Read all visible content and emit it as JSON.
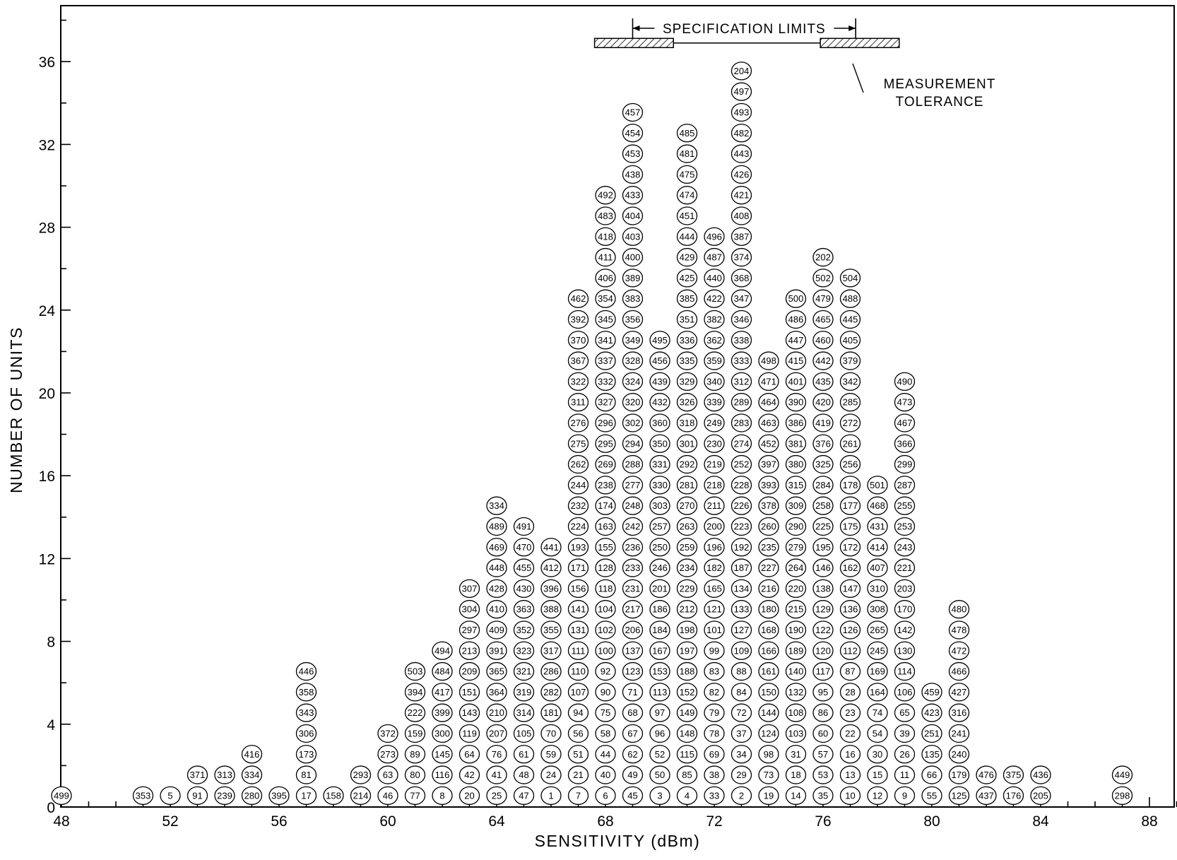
{
  "chart_data": {
    "type": "scatter",
    "xlabel": "SENSITIVITY (dBm)",
    "ylabel": "NUMBER OF UNITS",
    "xlim": [
      48,
      89
    ],
    "ylim": [
      0,
      38.5
    ],
    "x_ticks": [
      "48",
      "52",
      "56",
      "60",
      "64",
      "68",
      "72",
      "76",
      "80",
      "84",
      "88"
    ],
    "y_ticks": [
      "0",
      "4",
      "8",
      "12",
      "16",
      "20",
      "24",
      "28",
      "32",
      "36"
    ],
    "x_minor_step": 1,
    "y_minor_step": 2,
    "grid": false,
    "columns": [
      {
        "x": 48,
        "units": [
          "499"
        ]
      },
      {
        "x": 51,
        "units": [
          "353"
        ]
      },
      {
        "x": 52,
        "units": [
          "5"
        ]
      },
      {
        "x": 53,
        "units": [
          "91",
          "371"
        ]
      },
      {
        "x": 54,
        "units": [
          "239",
          "313"
        ]
      },
      {
        "x": 55,
        "units": [
          "280",
          "334",
          "416"
        ]
      },
      {
        "x": 56,
        "units": [
          "395"
        ]
      },
      {
        "x": 57,
        "units": [
          "17",
          "81",
          "173",
          "306",
          "343",
          "358",
          "446"
        ]
      },
      {
        "x": 58,
        "units": [
          "158"
        ]
      },
      {
        "x": 59,
        "units": [
          "214",
          "293"
        ]
      },
      {
        "x": 60,
        "units": [
          "46",
          "63",
          "273",
          "372"
        ]
      },
      {
        "x": 61,
        "units": [
          "77",
          "80",
          "89",
          "159",
          "222",
          "394",
          "503"
        ]
      },
      {
        "x": 62,
        "units": [
          "8",
          "116",
          "145",
          "300",
          "399",
          "417",
          "484",
          "494"
        ]
      },
      {
        "x": 63,
        "units": [
          "20",
          "42",
          "64",
          "119",
          "143",
          "151",
          "209",
          "213",
          "297",
          "304",
          "307"
        ]
      },
      {
        "x": 64,
        "units": [
          "25",
          "41",
          "76",
          "207",
          "210",
          "364",
          "365",
          "391",
          "409",
          "410",
          "428",
          "448",
          "469",
          "489",
          "334"
        ]
      },
      {
        "x": 65,
        "units": [
          "47",
          "48",
          "61",
          "105",
          "314",
          "319",
          "321",
          "323",
          "352",
          "363",
          "430",
          "455",
          "470",
          "491"
        ]
      },
      {
        "x": 66,
        "units": [
          "1",
          "24",
          "59",
          "70",
          "181",
          "282",
          "286",
          "317",
          "355",
          "388",
          "396",
          "412",
          "441"
        ]
      },
      {
        "x": 67,
        "units": [
          "7",
          "21",
          "51",
          "56",
          "94",
          "107",
          "110",
          "111",
          "131",
          "141",
          "156",
          "171",
          "193",
          "224",
          "232",
          "244",
          "262",
          "275",
          "276",
          "311",
          "322",
          "367",
          "370",
          "392",
          "462"
        ]
      },
      {
        "x": 68,
        "units": [
          "6",
          "40",
          "44",
          "58",
          "75",
          "90",
          "92",
          "100",
          "102",
          "104",
          "118",
          "128",
          "155",
          "163",
          "174",
          "238",
          "269",
          "295",
          "296",
          "327",
          "332",
          "337",
          "341",
          "345",
          "354",
          "406",
          "411",
          "418",
          "483",
          "492"
        ]
      },
      {
        "x": 69,
        "units": [
          "45",
          "49",
          "62",
          "67",
          "68",
          "71",
          "123",
          "137",
          "206",
          "217",
          "231",
          "233",
          "236",
          "242",
          "248",
          "277",
          "288",
          "294",
          "302",
          "320",
          "324",
          "328",
          "349",
          "356",
          "383",
          "389",
          "400",
          "403",
          "404",
          "433",
          "438",
          "453",
          "454",
          "457"
        ]
      },
      {
        "x": 70,
        "units": [
          "3",
          "50",
          "52",
          "96",
          "97",
          "113",
          "153",
          "167",
          "184",
          "186",
          "201",
          "246",
          "250",
          "257",
          "303",
          "330",
          "331",
          "350",
          "360",
          "432",
          "439",
          "456",
          "495"
        ]
      },
      {
        "x": 71,
        "units": [
          "4",
          "85",
          "115",
          "148",
          "149",
          "152",
          "188",
          "197",
          "198",
          "212",
          "229",
          "234",
          "259",
          "263",
          "270",
          "281",
          "292",
          "301",
          "318",
          "326",
          "329",
          "335",
          "336",
          "351",
          "385",
          "425",
          "429",
          "444",
          "451",
          "474",
          "475",
          "481",
          "485"
        ]
      },
      {
        "x": 72,
        "units": [
          "33",
          "38",
          "69",
          "78",
          "79",
          "82",
          "83",
          "99",
          "101",
          "121",
          "165",
          "182",
          "196",
          "200",
          "211",
          "218",
          "219",
          "230",
          "249",
          "339",
          "340",
          "359",
          "362",
          "382",
          "422",
          "440",
          "487",
          "496"
        ]
      },
      {
        "x": 73,
        "units": [
          "2",
          "29",
          "34",
          "37",
          "72",
          "84",
          "88",
          "109",
          "127",
          "133",
          "134",
          "187",
          "192",
          "223",
          "226",
          "228",
          "252",
          "274",
          "283",
          "289",
          "312",
          "333",
          "338",
          "346",
          "347",
          "368",
          "374",
          "387",
          "408",
          "421",
          "426",
          "443",
          "482",
          "493",
          "497",
          "204"
        ]
      },
      {
        "x": 74,
        "units": [
          "19",
          "73",
          "98",
          "124",
          "144",
          "150",
          "161",
          "166",
          "168",
          "180",
          "216",
          "227",
          "235",
          "260",
          "378",
          "393",
          "397",
          "452",
          "463",
          "464",
          "471",
          "498"
        ]
      },
      {
        "x": 75,
        "units": [
          "14",
          "18",
          "31",
          "103",
          "108",
          "132",
          "140",
          "189",
          "190",
          "215",
          "220",
          "264",
          "279",
          "290",
          "309",
          "315",
          "380",
          "381",
          "386",
          "390",
          "401",
          "415",
          "447",
          "486",
          "500"
        ]
      },
      {
        "x": 76,
        "units": [
          "35",
          "53",
          "57",
          "60",
          "86",
          "95",
          "117",
          "120",
          "122",
          "129",
          "138",
          "146",
          "195",
          "225",
          "258",
          "284",
          "325",
          "376",
          "419",
          "420",
          "435",
          "442",
          "460",
          "465",
          "479",
          "502",
          "202"
        ]
      },
      {
        "x": 77,
        "units": [
          "10",
          "13",
          "16",
          "22",
          "23",
          "28",
          "87",
          "112",
          "126",
          "136",
          "147",
          "162",
          "172",
          "175",
          "177",
          "178",
          "256",
          "261",
          "272",
          "285",
          "342",
          "379",
          "405",
          "445",
          "488",
          "504"
        ]
      },
      {
        "x": 78,
        "units": [
          "12",
          "15",
          "30",
          "54",
          "74",
          "164",
          "169",
          "245",
          "265",
          "308",
          "310",
          "407",
          "414",
          "431",
          "468",
          "501"
        ]
      },
      {
        "x": 79,
        "units": [
          "9",
          "11",
          "26",
          "39",
          "65",
          "106",
          "114",
          "130",
          "142",
          "170",
          "203",
          "221",
          "243",
          "253",
          "255",
          "287",
          "299",
          "366",
          "467",
          "473",
          "490"
        ]
      },
      {
        "x": 80,
        "units": [
          "55",
          "66",
          "135",
          "251",
          "423",
          "459"
        ]
      },
      {
        "x": 81,
        "units": [
          "125",
          "179",
          "240",
          "241",
          "316",
          "427",
          "466",
          "472",
          "478",
          "480"
        ]
      },
      {
        "x": 82,
        "units": [
          "437",
          "476"
        ]
      },
      {
        "x": 83,
        "units": [
          "176",
          "375"
        ]
      },
      {
        "x": 84,
        "units": [
          "205",
          "436"
        ]
      },
      {
        "x": 87,
        "units": [
          "298",
          "449"
        ]
      }
    ],
    "annotations": {
      "spec_limits_label": "SPECIFICATION LIMITS",
      "spec_limits": [
        69,
        77.2
      ],
      "tolerance_bands": [
        [
          67.6,
          70.5
        ],
        [
          75.9,
          78.8
        ]
      ],
      "band_level": 36.9,
      "tolerance_label_line1": "MEASUREMENT",
      "tolerance_label_line2": "TOLERANCE"
    }
  }
}
